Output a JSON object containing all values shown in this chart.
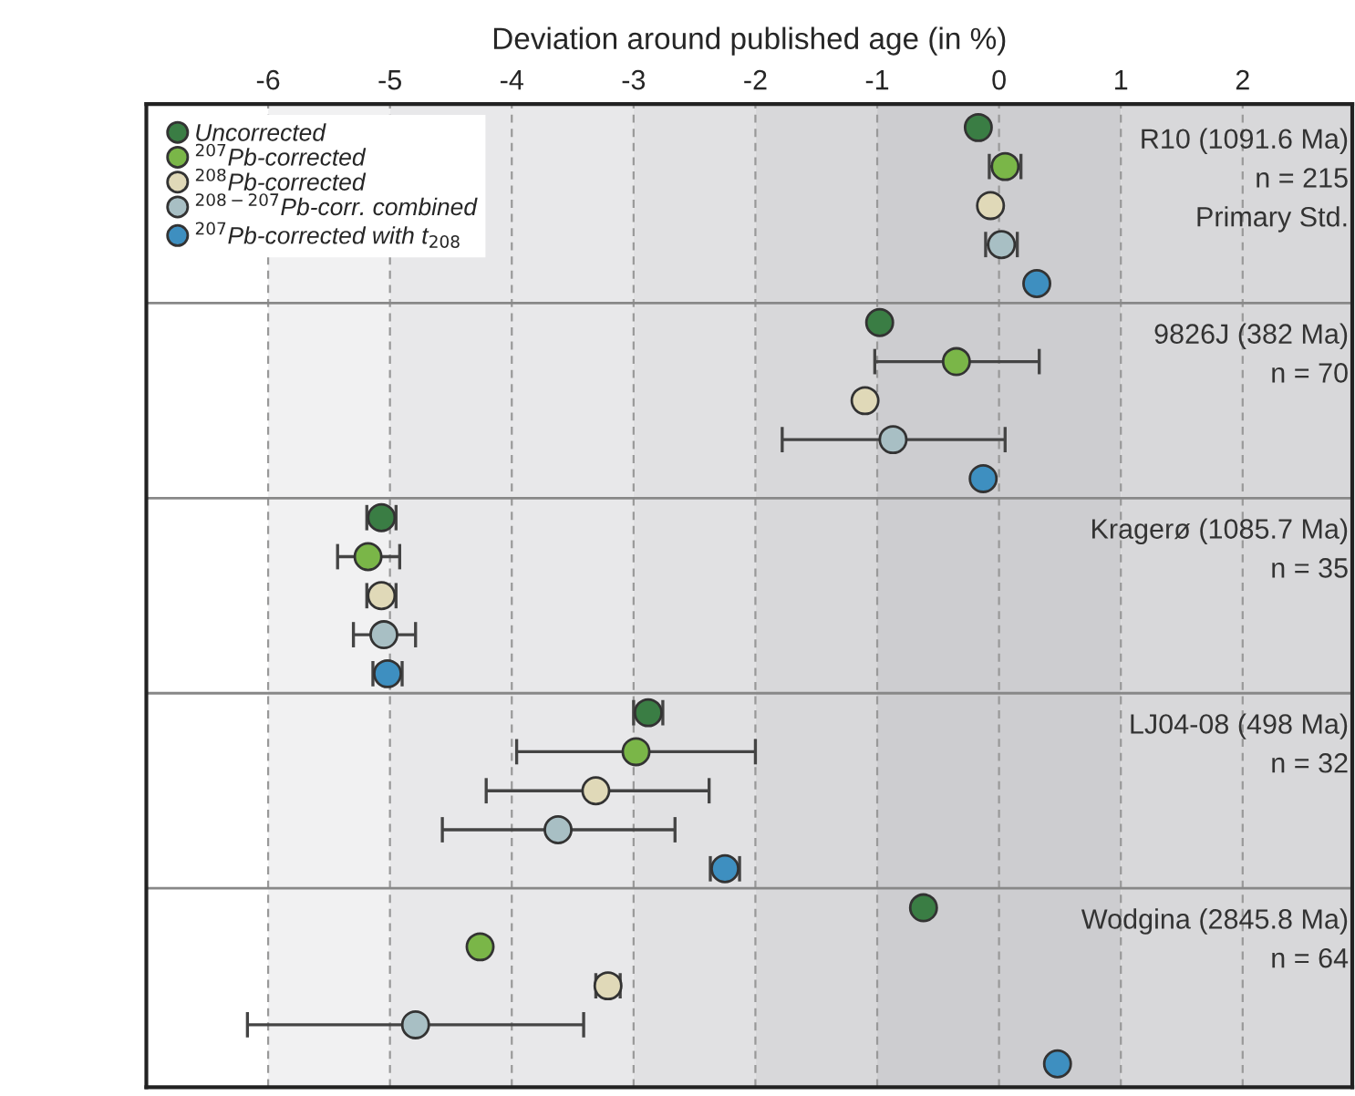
{
  "chart_data": {
    "type": "scatter",
    "orientation": "horizontal",
    "xlabel": "Deviation around published age (in %)",
    "categories": [
      "R10 (1091.6 Ma)",
      "n = 215",
      "Primary Std.",
      null,
      null,
      "9826J (382 Ma)",
      "n = 70",
      null,
      null,
      null,
      "Kragerø (1085.7 Ma)",
      "n = 35",
      null,
      null,
      null,
      "LJ04-08 (498 Ma)",
      "n = 32",
      null,
      null,
      null,
      "Wodgina (2845.8 Ma)",
      "n = 64",
      null,
      null,
      null
    ],
    "series": [
      {
        "name": "Uncorrected",
        "color": "#3a7d44",
        "values": [
          -0.17,
          null,
          null,
          null,
          null,
          -0.98,
          null,
          null,
          null,
          null,
          -5.07,
          null,
          null,
          null,
          null,
          -2.88,
          null,
          null,
          null,
          null,
          -0.62,
          null,
          null,
          null,
          null
        ],
        "errors": [
          null,
          null,
          null,
          null,
          null,
          null,
          null,
          null,
          null,
          null,
          0.12,
          null,
          null,
          null,
          null,
          0.12,
          null,
          null,
          null,
          null,
          null,
          null,
          null,
          null,
          null
        ]
      },
      {
        "name": "$^{207}$Pb-corrected",
        "color": "#7ab648",
        "values": [
          null,
          0.05,
          null,
          null,
          null,
          null,
          -0.35,
          null,
          null,
          null,
          null,
          -5.18,
          null,
          null,
          null,
          null,
          -2.98,
          null,
          null,
          null,
          null,
          -4.26,
          null,
          null,
          null
        ],
        "errors": [
          null,
          [
            -0.08,
            0.18
          ],
          null,
          null,
          null,
          null,
          [
            -1.02,
            0.33
          ],
          null,
          null,
          null,
          null,
          [
            -5.43,
            -4.92
          ],
          null,
          null,
          null,
          null,
          [
            -3.96,
            -2.0
          ],
          null,
          null,
          null,
          null,
          null,
          null,
          null,
          null
        ]
      },
      {
        "name": "$^{208}$Pb-corrected",
        "color": "#e0d9b8",
        "values": [
          null,
          null,
          -0.07,
          null,
          null,
          null,
          null,
          -1.1,
          null,
          null,
          null,
          null,
          -5.07,
          null,
          null,
          null,
          null,
          -3.31,
          null,
          null,
          null,
          null,
          -3.21,
          null,
          null
        ],
        "errors": [
          null,
          null,
          null,
          null,
          null,
          null,
          null,
          null,
          null,
          null,
          null,
          null,
          0.12,
          null,
          null,
          null,
          null,
          [
            -4.21,
            -2.38
          ],
          null,
          null,
          null,
          null,
          0.1,
          null,
          null
        ]
      },
      {
        "name": "$^{208−207}$Pb-corr. combined",
        "color": "#a8bfc4",
        "values": [
          null,
          null,
          null,
          0.02,
          null,
          null,
          null,
          null,
          -0.87,
          null,
          null,
          null,
          null,
          -5.05,
          null,
          null,
          null,
          null,
          -3.62,
          null,
          null,
          null,
          null,
          -4.79,
          null
        ],
        "errors": [
          null,
          null,
          null,
          [
            -0.11,
            0.15
          ],
          null,
          null,
          null,
          null,
          [
            -1.78,
            0.05
          ],
          null,
          null,
          null,
          null,
          [
            -5.3,
            -4.79
          ],
          null,
          null,
          null,
          null,
          [
            -4.57,
            -2.66
          ],
          null,
          null,
          null,
          null,
          [
            -6.17,
            -3.41
          ],
          null
        ]
      },
      {
        "name": "$^{207}$Pb-corrected with t$_{208}$",
        "color": "#3e8fc0",
        "values": [
          null,
          null,
          null,
          null,
          0.31,
          null,
          null,
          null,
          null,
          -0.13,
          null,
          null,
          null,
          null,
          -5.02,
          null,
          null,
          null,
          null,
          -2.25,
          null,
          null,
          null,
          null,
          0.48
        ],
        "errors": [
          null,
          null,
          null,
          null,
          null,
          null,
          null,
          null,
          null,
          null,
          null,
          null,
          null,
          null,
          0.12,
          null,
          null,
          null,
          null,
          0.12,
          null,
          null,
          null,
          null,
          null
        ]
      }
    ],
    "xlim": [
      -7,
      2.9
    ],
    "xticks": [
      -6,
      -5,
      -4,
      -3,
      -2,
      -1,
      0,
      1,
      2
    ],
    "bands": [
      {
        "axis": "x",
        "from": -6,
        "to": -5,
        "color": "#f1f1f2"
      },
      {
        "axis": "x",
        "from": -5,
        "to": -3,
        "color": "#e8e8ea"
      },
      {
        "axis": "x",
        "from": -3,
        "to": -2,
        "color": "#e1e1e3"
      },
      {
        "axis": "x",
        "from": -2,
        "to": -1,
        "color": "#d8d8da"
      },
      {
        "axis": "x",
        "from": -1,
        "to": 1,
        "color": "#cdcdd0"
      },
      {
        "axis": "x",
        "from": 1,
        "to": 2.9,
        "color": "#d8d8da"
      }
    ],
    "grid": true,
    "legend": "top left",
    "marker": "circle",
    "tick_labels": "x"
  }
}
